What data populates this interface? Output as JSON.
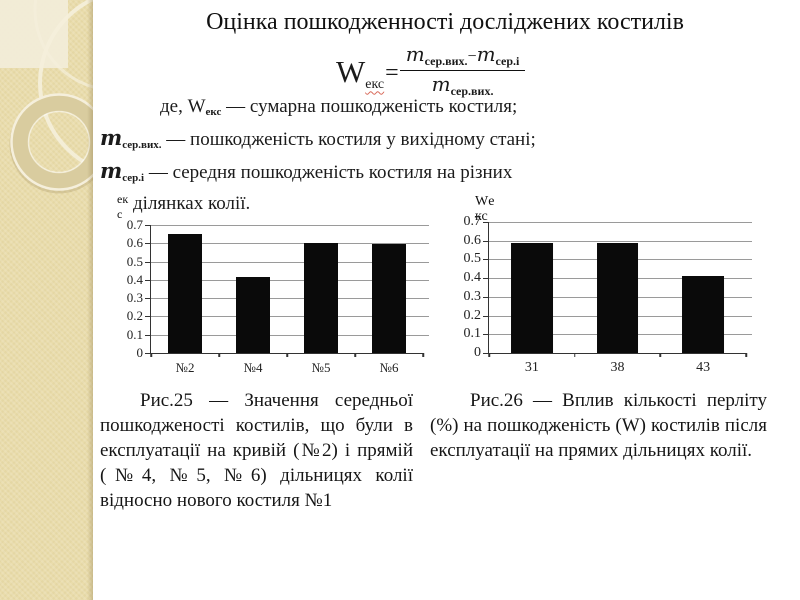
{
  "slide": {
    "title": "Оцінка пошкодженності досліджених костилів"
  },
  "formula": {
    "lhs_base": "W",
    "lhs_sub": "екс",
    "equals": "=",
    "num_m1": "m",
    "num_m1_sub": "сер.вих.",
    "num_minus": "−",
    "num_m2": "m",
    "num_m2_sub": "сер.і",
    "den_m": "m",
    "den_m_sub": "сер.вих."
  },
  "definitions": [
    {
      "lead": "де, ",
      "sym": "W",
      "sub": "екс",
      "rest": " — сумарна пошкодженість костиля;"
    },
    {
      "lead": "",
      "sym": "m",
      "sub": "сер.вих.",
      "rest": " — пошкодженість костиля у вихідному стані;"
    },
    {
      "lead": "",
      "sym": "m",
      "sub": "сер.і",
      "rest": " — середня пошкодженість костиля на різних"
    },
    {
      "lead": "",
      "sym": "",
      "sub": "",
      "rest": "ділянках колії."
    }
  ],
  "chart_data": [
    {
      "type": "bar",
      "title": "",
      "ylabel_lines": [
        "ек",
        "с"
      ],
      "categories": [
        "№2",
        "№4",
        "№5",
        "№6"
      ],
      "values": [
        0.65,
        0.415,
        0.6,
        0.595
      ],
      "yticks": [
        0,
        0.1,
        0.2,
        0.3,
        0.4,
        0.5,
        0.6,
        0.7
      ],
      "ylim": [
        0,
        0.7
      ],
      "grid": true,
      "legend": false,
      "bar_color": "#0a0a0a",
      "bar_width": 0.5
    },
    {
      "type": "bar",
      "title": "",
      "ylabel_lines": [
        "Wе",
        "кс"
      ],
      "categories": [
        "31",
        "38",
        "43"
      ],
      "values": [
        0.59,
        0.59,
        0.41
      ],
      "yticks": [
        0,
        0.1,
        0.2,
        0.3,
        0.4,
        0.5,
        0.6,
        0.7
      ],
      "ylim": [
        0,
        0.7
      ],
      "grid": true,
      "legend": false,
      "bar_color": "#0a0a0a",
      "bar_width": 0.49
    }
  ],
  "captions": {
    "fig25": "Рис.25 — Значення середньої пошкодженості костилів, що були в експлуатації на кривій (№2) і прямій (№4, №5, №6) дільницях колії відносно нового костиля №1",
    "fig26": "Рис.26 — Вплив кількості перліту (%) на пошкодженість (W) костилів після експлуатації на прямих дільницях колії."
  },
  "colors": {
    "background": "#ffffff",
    "sidebar": "#e9dcab",
    "sidebar_square": "#f2ecd8",
    "ring_fill": "#d9cc9f",
    "ring_highlight": "#f5efdc",
    "bar": "#0a0a0a",
    "gridline": "#9a9a9a",
    "axis": "#333333",
    "text": "#1b1b1b",
    "spellcheck_underline": "#d86a5a"
  }
}
